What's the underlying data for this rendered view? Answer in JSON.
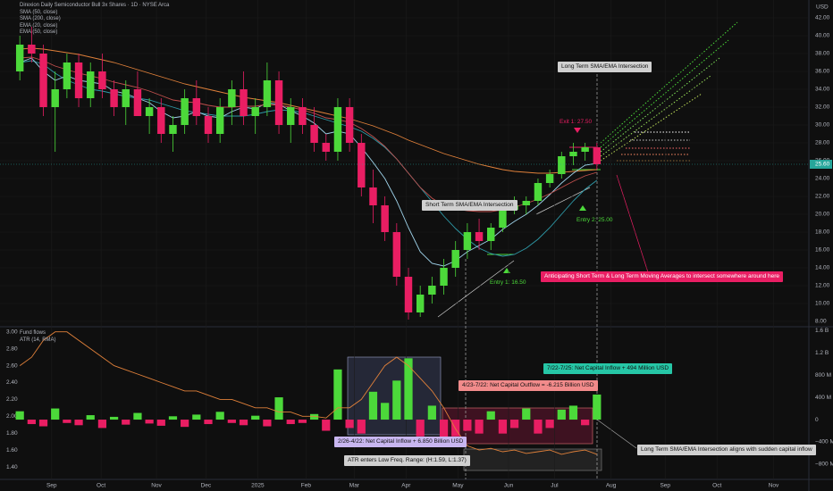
{
  "chart_data": [
    {
      "type": "candlestick",
      "title": "Direxion Daily Semiconductor Bull 3x Shares · 1D · NYSE Arca",
      "axis_label": "USD",
      "up_color": "#4cd93a",
      "down_color": "#e91e63",
      "open": [
        36,
        39,
        38,
        32,
        34,
        37,
        33,
        36,
        34,
        32,
        34,
        31,
        32,
        29,
        30,
        33,
        31,
        29,
        32,
        34,
        31,
        32,
        35,
        30,
        32,
        30,
        28,
        27,
        32,
        28,
        23,
        21,
        18,
        13,
        9,
        11,
        12,
        14,
        16,
        18,
        17,
        18.5,
        20.5,
        21,
        21.5,
        23.5,
        24.5,
        26.5,
        27,
        27.5
      ],
      "high": [
        40,
        41,
        39,
        36,
        38,
        38,
        37,
        38,
        35,
        35,
        36,
        33,
        33,
        31,
        34,
        35,
        32,
        33,
        35,
        36,
        33,
        37,
        36,
        33,
        33,
        32,
        29,
        33,
        33,
        29,
        25,
        22,
        19,
        14,
        12,
        13,
        15,
        17,
        19,
        19.5,
        19,
        21,
        22,
        22,
        24,
        25,
        27,
        28,
        28,
        28
      ],
      "low": [
        35,
        37,
        31,
        27,
        33,
        32,
        32,
        33,
        31,
        30,
        31,
        29,
        28,
        27,
        29,
        30,
        28,
        28,
        30,
        30,
        29,
        31,
        29,
        28,
        29,
        27,
        26,
        26,
        27,
        22,
        19,
        17,
        12,
        8.2,
        8.5,
        10,
        11,
        13,
        15,
        16,
        16,
        18,
        20,
        20,
        21,
        23,
        24,
        25.5,
        26,
        25
      ],
      "close": [
        39,
        38,
        32,
        34,
        37,
        33,
        36,
        34,
        32,
        34,
        31,
        32,
        29,
        30,
        33,
        31,
        29,
        32,
        34,
        31,
        32,
        35,
        30,
        32,
        30,
        28,
        27,
        32,
        28,
        23,
        21,
        18,
        13,
        9,
        11,
        12,
        14,
        16,
        18,
        17,
        18.5,
        20.5,
        21,
        21.5,
        23.5,
        24.5,
        26.5,
        27,
        27.5,
        25.6
      ],
      "series": [
        {
          "name": "SMA (50, close)",
          "color": "#2e9aa8",
          "values": [
            37,
            37.2,
            36.8,
            35.8,
            35,
            34.5,
            34,
            33.8,
            33.5,
            33.2,
            33,
            32.8,
            32.4,
            32,
            31.6,
            31.4,
            31.2,
            31,
            31,
            31,
            31.2,
            31.5,
            31.7,
            31.6,
            31.4,
            31,
            30.6,
            30.2,
            29.8,
            29.3,
            28.5,
            27.5,
            26.2,
            24.6,
            23,
            21.4,
            19.8,
            18.4,
            17.2,
            16.2,
            15.6,
            15.3,
            15.5,
            16.2,
            17.2,
            18.5,
            20,
            21.5,
            22.8,
            23.8
          ]
        },
        {
          "name": "SMA (200, close)",
          "color": "#e0803a",
          "values": [
            38.5,
            38.6,
            38.5,
            38.3,
            38.1,
            37.9,
            37.6,
            37.3,
            37,
            36.6,
            36.2,
            35.8,
            35.4,
            35,
            34.6,
            34.3,
            34,
            33.7,
            33.4,
            33.1,
            32.9,
            32.7,
            32.5,
            32.2,
            31.9,
            31.6,
            31.3,
            31,
            30.7,
            30.3,
            29.9,
            29.4,
            28.9,
            28.3,
            27.8,
            27.3,
            26.8,
            26.4,
            26,
            25.6,
            25.3,
            25,
            24.8,
            24.7,
            24.6,
            24.6,
            24.7,
            24.8,
            24.9,
            25
          ]
        },
        {
          "name": "EMA (20, close)",
          "color": "#9fd3ea",
          "values": [
            37,
            37.5,
            36,
            35,
            35.5,
            35,
            34.8,
            34.6,
            33.8,
            33.5,
            33,
            32.5,
            31.5,
            30.8,
            31,
            31.5,
            31,
            30.8,
            31.5,
            32,
            31.8,
            32.5,
            32.3,
            31.6,
            31,
            30.2,
            29,
            29.3,
            29,
            27.5,
            25.8,
            24,
            21.5,
            18.5,
            15.8,
            14.5,
            14.2,
            14.8,
            15.8,
            16.5,
            17.2,
            18.3,
            19.2,
            20,
            21,
            22.2,
            23.5,
            24.6,
            25.5,
            25.7
          ]
        },
        {
          "name": "EMA (50, close)",
          "color": "#c0504d",
          "values": [
            37.5,
            37.6,
            37.2,
            36.6,
            36.2,
            35.8,
            35.5,
            35.2,
            34.8,
            34.5,
            34.2,
            33.8,
            33.3,
            32.8,
            32.6,
            32.5,
            32.2,
            32,
            32,
            32.1,
            32.1,
            32.3,
            32.2,
            32,
            31.7,
            31.3,
            30.8,
            30.6,
            30.3,
            29.6,
            28.7,
            27.6,
            26.2,
            24.6,
            23,
            21.8,
            21,
            20.6,
            20.4,
            20.3,
            20.3,
            20.5,
            20.8,
            21.2,
            21.7,
            22.3,
            23,
            23.7,
            24.3,
            24.7
          ]
        }
      ],
      "last_price": {
        "value": 25.6,
        "label": "25.60"
      },
      "xlim": [
        -1,
        67
      ],
      "xticks": [
        {
          "value": 2.7,
          "label": "Sep"
        },
        {
          "value": 6.9,
          "label": "Oct"
        },
        {
          "value": 11.6,
          "label": "Nov"
        },
        {
          "value": 15.8,
          "label": "Dec"
        },
        {
          "value": 20.2,
          "label": "2025"
        },
        {
          "value": 24.3,
          "label": "Feb"
        },
        {
          "value": 28.4,
          "label": "Mar"
        },
        {
          "value": 32.8,
          "label": "Apr"
        },
        {
          "value": 37.2,
          "label": "May"
        },
        {
          "value": 41.5,
          "label": "Jun"
        },
        {
          "value": 45.4,
          "label": "Jul"
        },
        {
          "value": 50.2,
          "label": "Aug"
        },
        {
          "value": 54.8,
          "label": "Sep"
        },
        {
          "value": 59.2,
          "label": "Oct"
        },
        {
          "value": 64,
          "label": "Nov"
        }
      ],
      "ylim": [
        7.5,
        44
      ],
      "yticks": [
        {
          "value": 8,
          "label": "8.00"
        },
        {
          "value": 10,
          "label": "10.00"
        },
        {
          "value": 12,
          "label": "12.00"
        },
        {
          "value": 14,
          "label": "14.00"
        },
        {
          "value": 16,
          "label": "16.00"
        },
        {
          "value": 18,
          "label": "18.00"
        },
        {
          "value": 20,
          "label": "20.00"
        },
        {
          "value": 22,
          "label": "22.00"
        },
        {
          "value": 24,
          "label": "24.00"
        },
        {
          "value": 26,
          "label": "26.00"
        },
        {
          "value": 28,
          "label": "28.00"
        },
        {
          "value": 30,
          "label": "30.00"
        },
        {
          "value": 32,
          "label": "32.00"
        },
        {
          "value": 34,
          "label": "34.00"
        },
        {
          "value": 36,
          "label": "36.00"
        },
        {
          "value": 38,
          "label": "38.00"
        },
        {
          "value": 40,
          "label": "40.00"
        },
        {
          "value": 42,
          "label": "42.00"
        }
      ],
      "grid": true,
      "annotations": [
        "Long Term SMA/EMA Intersection",
        "Exit 1: 27.50",
        "Entry 2: 25.00",
        "Short Term SMA/EMA Intersection",
        "Entry 1: 16.50",
        "Anticipating Short Term & Long Term Moving Averages to intersect somewhere around here"
      ]
    },
    {
      "type": "bar",
      "series": [
        {
          "name": "Fund flows",
          "type": "bar",
          "axis": "y2",
          "positive_color": "#4cd93a",
          "negative_color": "#e91e63",
          "values": [
            150,
            -80,
            -120,
            200,
            -60,
            -100,
            80,
            -150,
            50,
            -90,
            120,
            -70,
            -110,
            60,
            -130,
            90,
            -80,
            140,
            -60,
            -100,
            70,
            -120,
            400,
            -80,
            -60,
            100,
            -200,
            900,
            -150,
            -250,
            500,
            300,
            700,
            1100,
            -300,
            250,
            -400,
            -300,
            -200,
            -250,
            150,
            -250,
            -150,
            200,
            -250,
            -150,
            180,
            250,
            -100,
            450
          ]
        },
        {
          "name": "ATR (14, RMA)",
          "type": "line",
          "color": "#e0803a",
          "values": [
            2.6,
            2.7,
            2.9,
            3,
            3,
            2.9,
            2.8,
            2.7,
            2.6,
            2.55,
            2.5,
            2.45,
            2.4,
            2.35,
            2.3,
            2.3,
            2.25,
            2.2,
            2.2,
            2.15,
            2.1,
            2.1,
            2.05,
            2.05,
            2,
            2,
            1.98,
            2.1,
            2.1,
            2.2,
            2.4,
            2.6,
            2.7,
            2.6,
            2.45,
            2.3,
            2.1,
            1.85,
            1.65,
            1.6,
            1.62,
            1.58,
            1.6,
            1.56,
            1.58,
            1.6,
            1.55,
            1.58,
            1.6,
            1.55
          ]
        }
      ],
      "ylim": [
        1.3,
        3.05
      ],
      "yticks": [
        {
          "value": 1.4,
          "label": "1.40"
        },
        {
          "value": 1.6,
          "label": "1.60"
        },
        {
          "value": 1.8,
          "label": "1.80"
        },
        {
          "value": 2,
          "label": "2.00"
        },
        {
          "value": 2.2,
          "label": "2.20"
        },
        {
          "value": 2.4,
          "label": "2.40"
        },
        {
          "value": 2.6,
          "label": "2.60"
        },
        {
          "value": 2.8,
          "label": "2.80"
        },
        {
          "value": 3,
          "label": "3.00"
        }
      ],
      "y2lim": [
        -1000,
        1650
      ],
      "y2ticks": [
        {
          "value": 1600,
          "label": "1.6 B"
        },
        {
          "value": 1200,
          "label": "1.2 B"
        },
        {
          "value": 800,
          "label": "800 M"
        },
        {
          "value": 400,
          "label": "400 M"
        },
        0,
        {
          "value": -400,
          "label": "−400 M"
        },
        {
          "value": -800,
          "label": "−800 M"
        }
      ],
      "annotations": [
        "7/22-7/25: Net Capital Inflow + 494 Million USD",
        "4/23-7/22: Net Capital Outflow = -6.215 Billion USD",
        "2/26-4/22: Net Capital Inflow + 6.850 Billion USD",
        "ATR enters Low Freq. Range: (H:1.59, L:1.37)",
        "Long Term SMA/EMA Intersection aligns with sudden capital inflow"
      ]
    }
  ]
}
